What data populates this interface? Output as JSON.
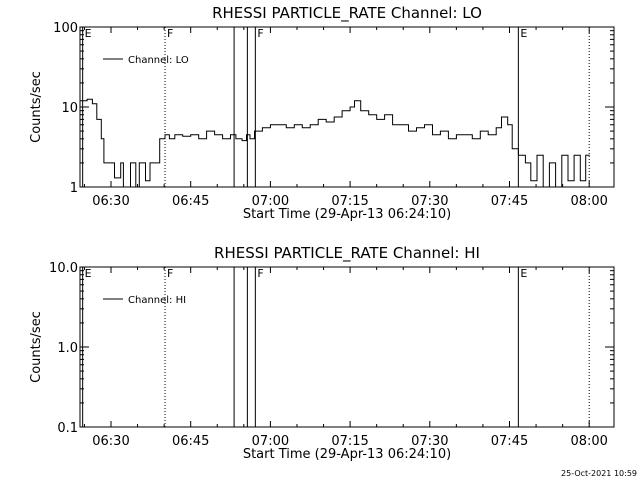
{
  "chart_data": [
    {
      "type": "line",
      "title": "RHESSI PARTICLE_RATE Channel: LO",
      "xlabel": "Start Time (29-Apr-13 06:24:10)",
      "ylabel": "Counts/sec",
      "yscale": "log",
      "xlim": [
        "06:24:10",
        "08:04:40"
      ],
      "ylim": [
        1,
        100
      ],
      "x_ticks": [
        "06:30",
        "06:45",
        "07:00",
        "07:15",
        "07:30",
        "07:45",
        "08:00"
      ],
      "y_ticks": [
        "1",
        "10",
        "100"
      ],
      "legend": "top-left",
      "series": [
        {
          "name": "Channel: LO",
          "x": [
            "06:24:10",
            "06:25:30",
            "06:26:30",
            "06:27:20",
            "06:28:10",
            "06:28:40",
            "06:29:40",
            "06:30:40",
            "06:31:50",
            "06:32:20",
            "06:33:40",
            "06:34:40",
            "06:35:20",
            "06:35:50",
            "06:36:30",
            "06:37:20",
            "06:38:40",
            "06:39:10",
            "06:40:10",
            "06:41:00",
            "06:42:00",
            "06:43:30",
            "06:45:00",
            "06:46:30",
            "06:48:00",
            "06:49:30",
            "06:51:00",
            "06:52:30",
            "06:53:30",
            "06:54:40",
            "06:55:30",
            "06:56:10",
            "06:57:00",
            "06:58:30",
            "07:00:00",
            "07:01:30",
            "07:03:00",
            "07:04:30",
            "07:06:00",
            "07:07:30",
            "07:09:00",
            "07:10:30",
            "07:12:00",
            "07:13:30",
            "07:15:00",
            "07:15:50",
            "07:17:00",
            "07:18:30",
            "07:20:00",
            "07:21:30",
            "07:23:00",
            "07:24:30",
            "07:26:00",
            "07:27:30",
            "07:29:00",
            "07:30:30",
            "07:32:00",
            "07:33:30",
            "07:35:00",
            "07:36:30",
            "07:38:00",
            "07:39:30",
            "07:41:00",
            "07:42:30",
            "07:43:30",
            "07:44:40",
            "07:45:30",
            "07:46:40",
            "07:48:00",
            "07:49:00",
            "07:50:10",
            "07:51:20",
            "07:52:30",
            "07:53:40",
            "07:54:50",
            "07:56:00",
            "07:57:10",
            "07:58:20",
            "07:59:20"
          ],
          "y": [
            12,
            12.5,
            11,
            7,
            4,
            2,
            2,
            1.3,
            2,
            1,
            2,
            1,
            2,
            2,
            1.2,
            2,
            2,
            4,
            4.5,
            4,
            4.5,
            4.3,
            4.5,
            4,
            5,
            4.5,
            4,
            4.5,
            4,
            3.8,
            4.5,
            4,
            5,
            5.5,
            6,
            6,
            5.5,
            6,
            5.5,
            6,
            7,
            6.5,
            7.5,
            9,
            10,
            12,
            9,
            8,
            7,
            8,
            6,
            6,
            5,
            5.5,
            6,
            4.5,
            5,
            4,
            4.5,
            4.5,
            4,
            5,
            4.5,
            5.5,
            7.5,
            6,
            3,
            2.5,
            2,
            1.2,
            2.5,
            1,
            2,
            1,
            2.5,
            1.2,
            2.5,
            1.2,
            2.5
          ]
        }
      ],
      "flags": [
        {
          "label": "E",
          "time": "06:24:40",
          "style": "solid"
        },
        {
          "label": "F",
          "time": "06:40:10",
          "style": "dotted"
        },
        {
          "label": "",
          "time": "06:53:10",
          "style": "solid"
        },
        {
          "label": "",
          "time": "06:55:40",
          "style": "solid"
        },
        {
          "label": "F",
          "time": "06:57:10",
          "style": "solid"
        },
        {
          "label": "E",
          "time": "07:46:40",
          "style": "solid"
        },
        {
          "label": "",
          "time": "08:00:00",
          "style": "dotted"
        }
      ]
    },
    {
      "type": "line",
      "title": "RHESSI PARTICLE_RATE Channel: HI",
      "xlabel": "Start Time (29-Apr-13 06:24:10)",
      "ylabel": "Counts/sec",
      "yscale": "log",
      "xlim": [
        "06:24:10",
        "08:04:40"
      ],
      "ylim": [
        0.1,
        10
      ],
      "x_ticks": [
        "06:30",
        "06:45",
        "07:00",
        "07:15",
        "07:30",
        "07:45",
        "08:00"
      ],
      "y_ticks": [
        "0.1",
        "1.0",
        "10.0"
      ],
      "legend": "top-left",
      "series": [
        {
          "name": "Channel: HI",
          "x": [],
          "y": []
        }
      ],
      "flags": [
        {
          "label": "E",
          "time": "06:24:40",
          "style": "solid"
        },
        {
          "label": "F",
          "time": "06:40:10",
          "style": "dotted"
        },
        {
          "label": "",
          "time": "06:53:10",
          "style": "solid"
        },
        {
          "label": "",
          "time": "06:55:40",
          "style": "solid"
        },
        {
          "label": "F",
          "time": "06:57:10",
          "style": "solid"
        },
        {
          "label": "E",
          "time": "07:46:40",
          "style": "solid"
        },
        {
          "label": "",
          "time": "08:00:00",
          "style": "dotted"
        }
      ]
    }
  ],
  "timestamp": "25-Oct-2021 10:59"
}
